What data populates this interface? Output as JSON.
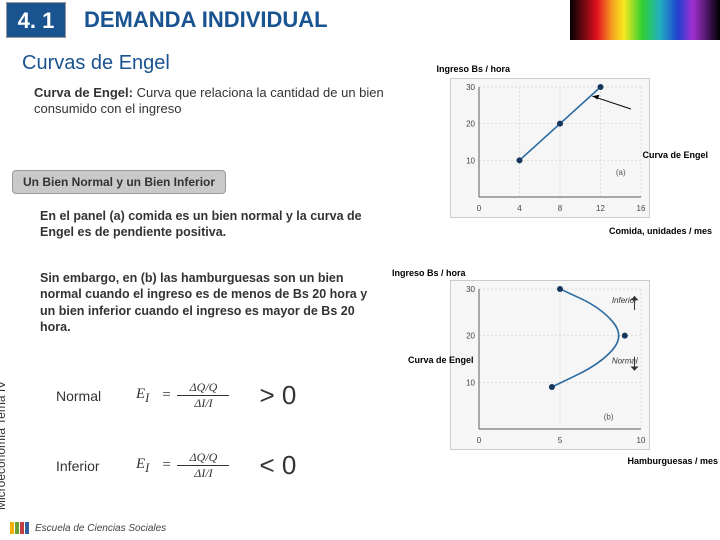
{
  "header": {
    "section_number": "4. 1",
    "title": "DEMANDA INDIVIDUAL"
  },
  "subtitle": "Curvas de Engel",
  "definition": {
    "lead": "Curva de Engel:",
    "rest": " Curva que relaciona la cantidad de un bien consumido con el ingreso"
  },
  "pill_text": "Un Bien Normal y un Bien Inferior",
  "paragraph_a": "En el panel (a) comida es un bien normal y la curva de Engel es de pendiente positiva.",
  "paragraph_b": "Sin embargo, en (b) las hamburguesas son un bien normal cuando el ingreso es de menos de Bs 20 hora y un bien inferior cuando el ingreso es mayor de Bs 20 hora.",
  "side_label": "Microeconomía Tema IV",
  "rows": {
    "normal": {
      "label": "Normal",
      "symbol": "E",
      "sub": "I",
      "top": "ΔQ/Q",
      "bot": "ΔI/I",
      "sign": "> 0"
    },
    "inferior": {
      "label": "Inferior",
      "symbol": "E",
      "sub": "I",
      "top": "ΔQ/Q",
      "bot": "ΔI/I",
      "sign": "< 0"
    }
  },
  "chart_a": {
    "ylabel": "Ingreso Bs / hora",
    "xlabel": "Comida, unidades / mes",
    "curve_label": "Curva de Engel",
    "panel": "(a)",
    "bg": "#f6f6f6",
    "axis": "#777",
    "grid": "#d4d4d4",
    "line_color": "#2a6aa0",
    "point_color": "#16365c",
    "xlim": [
      0,
      16
    ],
    "ylim": [
      0,
      30
    ],
    "xticks": [
      0,
      4,
      8,
      12,
      16
    ],
    "yticks": [
      10,
      20,
      30
    ],
    "points": [
      [
        4,
        10
      ],
      [
        8,
        20
      ],
      [
        12,
        30
      ]
    ]
  },
  "chart_b": {
    "ylabel": "Ingreso Bs / hora",
    "xlabel": "Hamburguesas / mes",
    "curve_label": "Curva de Engel",
    "labels": {
      "inferior": "Inferior",
      "normal": "Normal"
    },
    "panel": "(b)",
    "bg": "#f6f6f6",
    "axis": "#777",
    "grid": "#d4d4d4",
    "line_color": "#2a6aa0",
    "point_color": "#16365c",
    "xlim": [
      0,
      10
    ],
    "ylim": [
      0,
      30
    ],
    "xticks": [
      0,
      5,
      10
    ],
    "yticks": [
      10,
      20,
      30
    ],
    "curve": [
      [
        4.5,
        9
      ],
      [
        7.5,
        14
      ],
      [
        9,
        20
      ],
      [
        7.5,
        26
      ],
      [
        5,
        30
      ]
    ],
    "points": [
      [
        4.5,
        9
      ],
      [
        9,
        20
      ],
      [
        5,
        30
      ]
    ]
  },
  "footer": {
    "text": "Escuela de Ciencias Sociales",
    "colors": [
      "#f0b000",
      "#6aa030",
      "#c04040",
      "#3060a0"
    ]
  }
}
